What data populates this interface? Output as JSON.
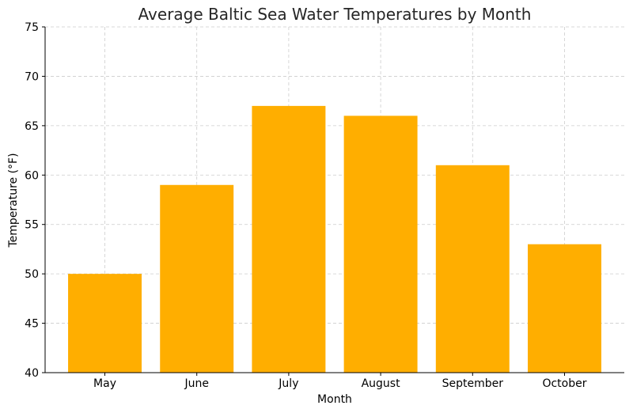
{
  "chart_data": {
    "type": "bar",
    "title": "Average Baltic Sea Water Temperatures by Month",
    "xlabel": "Month",
    "ylabel": "Temperature (°F)",
    "categories": [
      "May",
      "June",
      "July",
      "August",
      "September",
      "October"
    ],
    "values": [
      50,
      59,
      67,
      66,
      61,
      53
    ],
    "ylim": [
      40,
      75
    ],
    "yticks": [
      40,
      45,
      50,
      55,
      60,
      65,
      70,
      75
    ],
    "grid": true,
    "bar_color": "#ffae00"
  }
}
